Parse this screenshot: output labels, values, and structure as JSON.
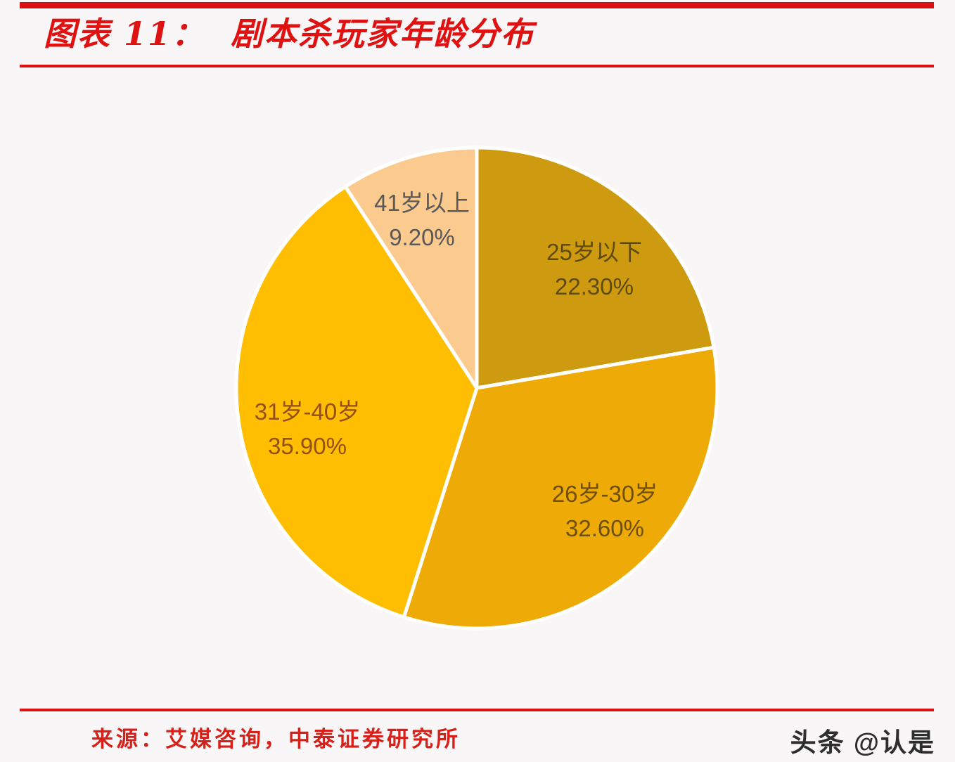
{
  "header": {
    "title": "图表 11：  剧本杀玩家年龄分布"
  },
  "footer": {
    "source": "来源：艾媒咨询，中泰证券研究所",
    "watermark": "头条 @认是"
  },
  "colors": {
    "accent_red": "#dc1111",
    "background": "#f8f6f6",
    "watermark_text": "#2e2e2e",
    "source_text": "#d8201a"
  },
  "chart_data": {
    "type": "pie",
    "title": "剧本杀玩家年龄分布",
    "categories": [
      "25岁以下",
      "26岁-30岁",
      "31岁-40岁",
      "41岁以上"
    ],
    "values": [
      22.3,
      32.6,
      35.9,
      9.2
    ],
    "labels": [
      "22.30%",
      "32.60%",
      "35.90%",
      "9.20%"
    ],
    "start_angle_deg": 0,
    "direction": "clockwise",
    "slice_colors": [
      "#ce9a10",
      "#eeaa06",
      "#ffbe02",
      "#faca8f"
    ],
    "label_text_colors": [
      "#5e4b11",
      "#6f4f0d",
      "#944f16",
      "#595959"
    ],
    "border_color": "#ffffff",
    "border_width": 5,
    "legend": "none"
  }
}
